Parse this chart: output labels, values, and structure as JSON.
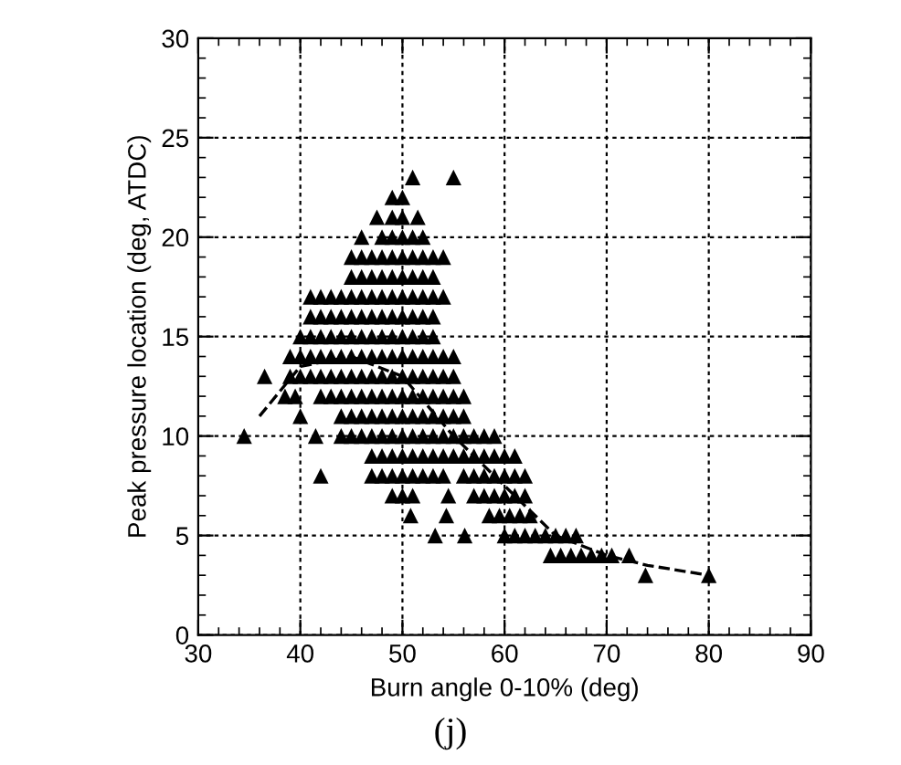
{
  "chart_data": {
    "type": "scatter",
    "xlabel": "Burn angle 0-10% (deg)",
    "ylabel": "Peak pressure location (deg, ATDC)",
    "annotations": [
      "(j)"
    ],
    "xlim": [
      30,
      90
    ],
    "xticks": [
      30,
      40,
      50,
      60,
      70,
      80,
      90
    ],
    "ylim": [
      0,
      30
    ],
    "yticks": [
      0,
      5,
      10,
      15,
      20,
      25,
      30
    ],
    "grid": true,
    "marker": "triangle",
    "series": [
      {
        "color": "#000000",
        "x": [
          51,
          55,
          49,
          50,
          47.5,
          49,
          50,
          51.5,
          46,
          48,
          49,
          50,
          51,
          52,
          45,
          46,
          47,
          48,
          49,
          50,
          51,
          52,
          53,
          54,
          45,
          46,
          47,
          48,
          49,
          50,
          51,
          52,
          53,
          41,
          42,
          43,
          44,
          45,
          46,
          47,
          48,
          49,
          50,
          51,
          52,
          53,
          54,
          41,
          42,
          43,
          44,
          45,
          46,
          47,
          48,
          49,
          50,
          51,
          52,
          53,
          40,
          41,
          42,
          43,
          44,
          45,
          46,
          47,
          48,
          49,
          50,
          51,
          52,
          53,
          39,
          40,
          41,
          42,
          43,
          44,
          45,
          46,
          47,
          48,
          49,
          50,
          51,
          52,
          53,
          54,
          55,
          36.5,
          39,
          40,
          41,
          42,
          43,
          44,
          45,
          46,
          47,
          48,
          49,
          50,
          51,
          52,
          53,
          54,
          55,
          38.5,
          39.5,
          42,
          43,
          44,
          45,
          46,
          47,
          48,
          49,
          50,
          51,
          52,
          53,
          54,
          55,
          56,
          40,
          44,
          45,
          46,
          47,
          48,
          49,
          50,
          51,
          52,
          53,
          54,
          55,
          56,
          34.5,
          41.5,
          44,
          45,
          46,
          47,
          48,
          49,
          50,
          51,
          52,
          53,
          54,
          55,
          56,
          57,
          58,
          59,
          47,
          48,
          49,
          50,
          51,
          52,
          53,
          54,
          55,
          56,
          57,
          58,
          59,
          60,
          61,
          42,
          47,
          48,
          49,
          50,
          51,
          52,
          53,
          54,
          56,
          57,
          58,
          59,
          60,
          61,
          62,
          49,
          50,
          51,
          54.5,
          57,
          58,
          59,
          60,
          61,
          62,
          50.8,
          54.3,
          58.5,
          59.5,
          60.5,
          61.5,
          62.5,
          53.2,
          56.1,
          60,
          61,
          62,
          63,
          64,
          65,
          66,
          67,
          64.5,
          65.5,
          66.5,
          67.5,
          68.5,
          69.5,
          70.5,
          72.2,
          73.8,
          80
        ],
        "values": [
          23,
          23,
          22,
          22,
          21,
          21,
          21,
          21,
          20,
          20,
          20,
          20,
          20,
          20,
          19,
          19,
          19,
          19,
          19,
          19,
          19,
          19,
          19,
          19,
          18,
          18,
          18,
          18,
          18,
          18,
          18,
          18,
          18,
          17,
          17,
          17,
          17,
          17,
          17,
          17,
          17,
          17,
          17,
          17,
          17,
          17,
          17,
          16,
          16,
          16,
          16,
          16,
          16,
          16,
          16,
          16,
          16,
          16,
          16,
          16,
          15,
          15,
          15,
          15,
          15,
          15,
          15,
          15,
          15,
          15,
          15,
          15,
          15,
          15,
          14,
          14,
          14,
          14,
          14,
          14,
          14,
          14,
          14,
          14,
          14,
          14,
          14,
          14,
          14,
          14,
          14,
          13,
          13,
          13,
          13,
          13,
          13,
          13,
          13,
          13,
          13,
          13,
          13,
          13,
          13,
          13,
          13,
          13,
          13,
          12,
          12,
          12,
          12,
          12,
          12,
          12,
          12,
          12,
          12,
          12,
          12,
          12,
          12,
          12,
          12,
          12,
          11,
          11,
          11,
          11,
          11,
          11,
          11,
          11,
          11,
          11,
          11,
          11,
          11,
          11,
          10,
          10,
          10,
          10,
          10,
          10,
          10,
          10,
          10,
          10,
          10,
          10,
          10,
          10,
          10,
          10,
          10,
          10,
          9,
          9,
          9,
          9,
          9,
          9,
          9,
          9,
          9,
          9,
          9,
          9,
          9,
          9,
          9,
          8,
          8,
          8,
          8,
          8,
          8,
          8,
          8,
          8,
          8,
          8,
          8,
          8,
          8,
          8,
          8,
          7,
          7,
          7,
          7,
          7,
          7,
          7,
          7,
          7,
          7,
          6,
          6,
          6,
          6,
          6,
          6,
          6,
          5,
          5,
          5,
          5,
          5,
          5,
          5,
          5,
          5,
          5,
          4,
          4,
          4,
          4,
          4,
          4,
          4,
          4,
          3,
          3
        ]
      },
      {
        "type": "line",
        "color": "#000000",
        "line_style": "dashed",
        "marker": "none",
        "x": [
          36,
          40,
          45,
          50,
          55,
          60,
          65,
          70,
          74,
          80
        ],
        "values": [
          11,
          13.5,
          14,
          13,
          10,
          7.5,
          5,
          4,
          3.5,
          3
        ]
      }
    ]
  }
}
